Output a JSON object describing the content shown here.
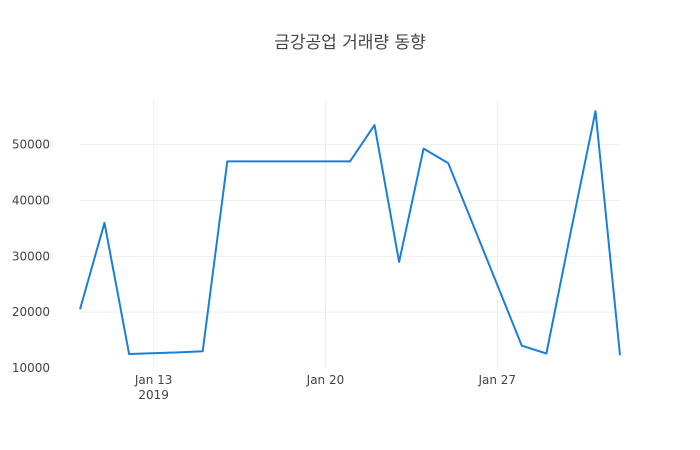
{
  "chart_data": {
    "type": "line",
    "title": "금강공업 거래량 동향",
    "xlabel": "",
    "ylabel": "",
    "x": [
      "2019-01-10",
      "2019-01-11",
      "2019-01-12",
      "2019-01-14",
      "2019-01-15",
      "2019-01-16",
      "2019-01-17",
      "2019-01-18",
      "2019-01-19",
      "2019-01-20",
      "2019-01-21",
      "2019-01-22",
      "2019-01-23",
      "2019-01-24",
      "2019-01-25",
      "2019-01-28",
      "2019-01-29",
      "2019-01-30",
      "2019-01-31",
      "2019-02-01"
    ],
    "series": [
      {
        "color": "#1f77b4",
        "values": [
          20500,
          36000,
          12500,
          12800,
          13000,
          47000,
          47000,
          47000,
          47000,
          47000,
          47000,
          53500,
          29000,
          49300,
          46700,
          14000,
          12600,
          34500,
          56000,
          12300
        ]
      }
    ],
    "xlim": [
      "2019-01-10",
      "2019-02-01"
    ],
    "ylim": [
      10000,
      58000
    ],
    "yticks": [
      10000,
      20000,
      30000,
      40000,
      50000
    ],
    "xticks": [
      {
        "date": "2019-01-13",
        "label": "Jan 13",
        "sublabel": "2019"
      },
      {
        "date": "2019-01-20",
        "label": "Jan 20",
        "sublabel": ""
      },
      {
        "date": "2019-01-27",
        "label": "Jan 27",
        "sublabel": ""
      }
    ],
    "grid": true,
    "legend": "none",
    "line_color": "#1a7fd8"
  }
}
